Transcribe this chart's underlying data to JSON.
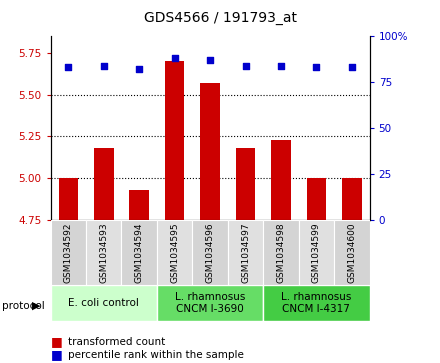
{
  "title": "GDS4566 / 191793_at",
  "samples": [
    "GSM1034592",
    "GSM1034593",
    "GSM1034594",
    "GSM1034595",
    "GSM1034596",
    "GSM1034597",
    "GSM1034598",
    "GSM1034599",
    "GSM1034600"
  ],
  "bar_values": [
    5.0,
    5.18,
    4.93,
    5.7,
    5.57,
    5.18,
    5.23,
    5.0,
    5.0
  ],
  "scatter_values": [
    83,
    84,
    82,
    88,
    87,
    84,
    84,
    83,
    83
  ],
  "bar_bottom": 4.75,
  "ylim_left": [
    4.75,
    5.85
  ],
  "ylim_right": [
    0,
    100
  ],
  "yticks_left": [
    4.75,
    5.0,
    5.25,
    5.5,
    5.75
  ],
  "yticks_right": [
    0,
    25,
    50,
    75,
    100
  ],
  "bar_color": "#cc0000",
  "scatter_color": "#0000cc",
  "protocol_groups": [
    {
      "label": "E. coli control",
      "start": 0,
      "end": 3,
      "color": "#ccffcc"
    },
    {
      "label": "L. rhamnosus\nCNCM I-3690",
      "start": 3,
      "end": 6,
      "color": "#66dd66"
    },
    {
      "label": "L. rhamnosus\nCNCM I-4317",
      "start": 6,
      "end": 9,
      "color": "#44cc44"
    }
  ],
  "legend_bar_label": "transformed count",
  "legend_scatter_label": "percentile rank within the sample",
  "protocol_label": "protocol",
  "tick_label_color_left": "#cc0000",
  "tick_label_color_right": "#0000cc",
  "bg_color": "#ffffff",
  "plot_bg_color": "#ffffff",
  "tick_fontsize": 7.5,
  "title_fontsize": 10,
  "sample_fontsize": 6.5,
  "proto_fontsize": 7.5,
  "legend_fontsize": 7.5
}
